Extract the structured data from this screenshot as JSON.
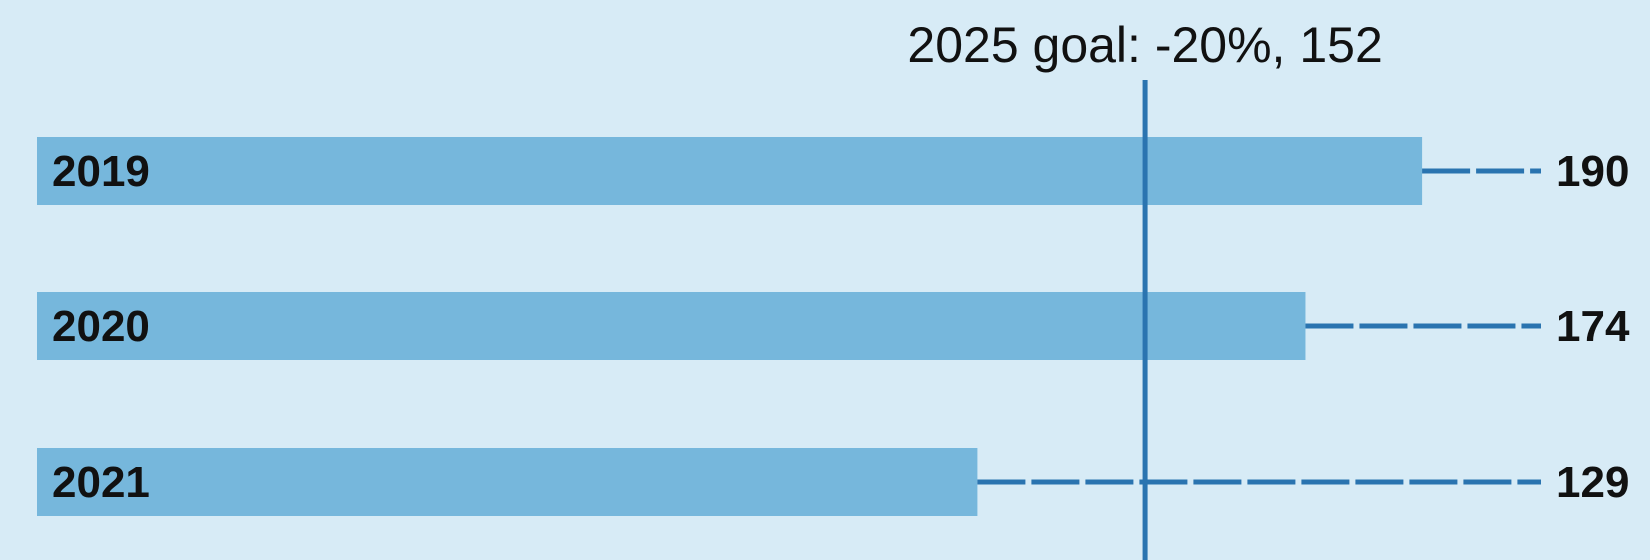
{
  "chart_data": {
    "type": "bar",
    "orientation": "horizontal",
    "categories": [
      "2019",
      "2020",
      "2021"
    ],
    "values": [
      190,
      174,
      129
    ],
    "value_labels": [
      "190",
      "174",
      "129"
    ],
    "goal": {
      "value": 152,
      "label": "2025 goal: -20%, 152"
    },
    "xlim": [
      0,
      190
    ],
    "title": "",
    "xlabel": "",
    "ylabel": "",
    "grid": false,
    "legend": "none"
  },
  "colors": {
    "background": "#d7ebf6",
    "bar": "#76b7dc",
    "goal_line": "#2a74b0",
    "leader": "#2a74b0",
    "text": "#111111"
  }
}
